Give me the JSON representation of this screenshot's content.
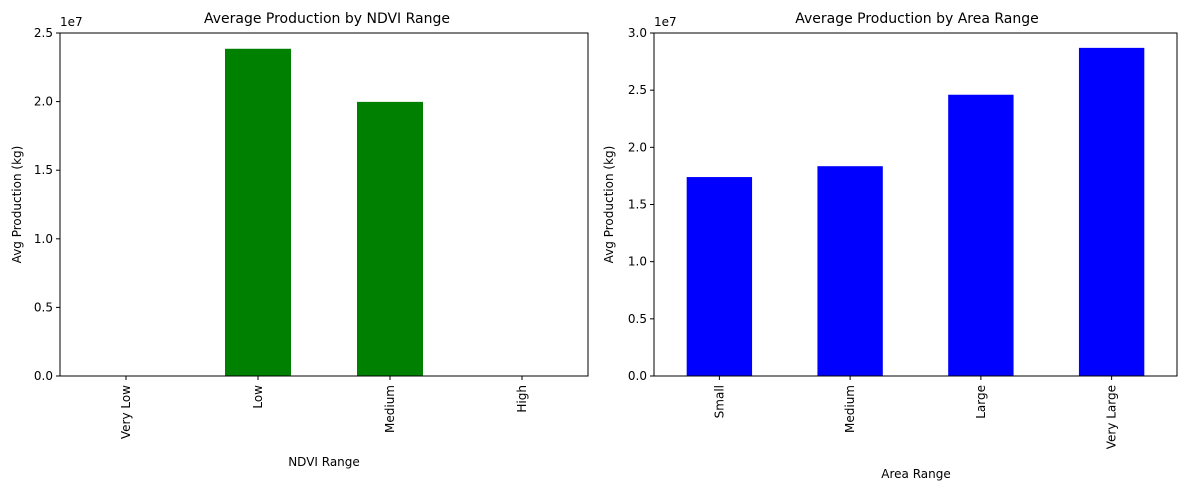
{
  "chart_data": [
    {
      "type": "bar",
      "title": "Average Production by NDVI Range",
      "xlabel": "NDVI Range",
      "ylabel": "Avg Production (kg)",
      "offset_text": "1e7",
      "categories": [
        "Very Low",
        "Low",
        "Medium",
        "High"
      ],
      "values": [
        0,
        23850000,
        19980000,
        0
      ],
      "ylim": [
        0,
        25000000
      ],
      "yticks": [
        0,
        5000000,
        10000000,
        15000000,
        20000000,
        25000000
      ],
      "ytick_labels": [
        "0.0",
        "0.5",
        "1.0",
        "1.5",
        "2.0",
        "2.5"
      ],
      "bar_color": "#008000",
      "grid": false
    },
    {
      "type": "bar",
      "title": "Average Production by Area Range",
      "xlabel": "Area Range",
      "ylabel": "Avg Production (kg)",
      "offset_text": "1e7",
      "categories": [
        "Small",
        "Medium",
        "Large",
        "Very Large"
      ],
      "values": [
        17400000,
        18350000,
        24600000,
        28700000
      ],
      "ylim": [
        0,
        30000000
      ],
      "yticks": [
        0,
        5000000,
        10000000,
        15000000,
        20000000,
        25000000,
        30000000
      ],
      "ytick_labels": [
        "0.0",
        "0.5",
        "1.0",
        "1.5",
        "2.0",
        "2.5",
        "3.0"
      ],
      "bar_color": "#0000ff",
      "grid": false
    }
  ]
}
